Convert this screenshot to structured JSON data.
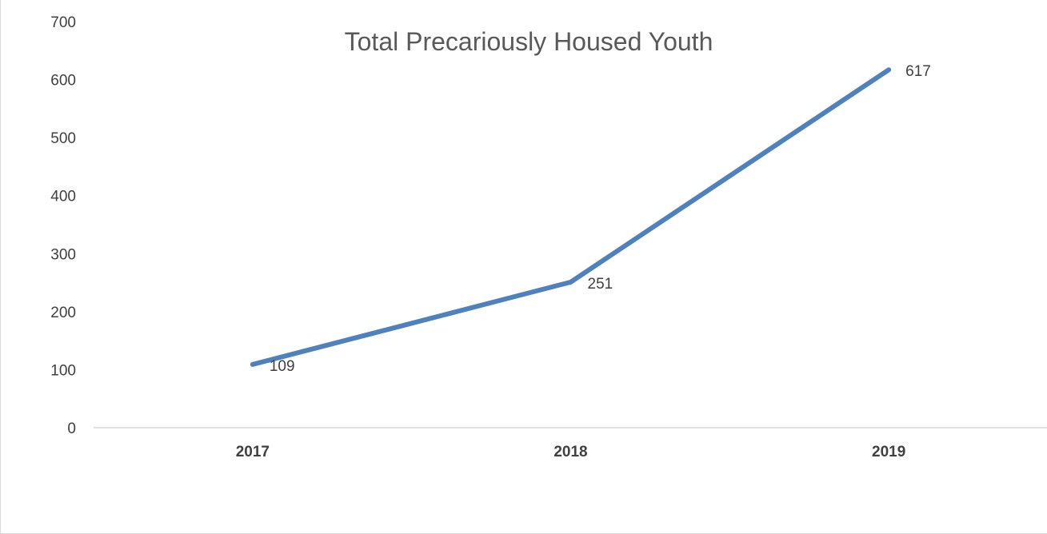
{
  "chart_data": {
    "type": "line",
    "title": "Total Precariously Housed Youth",
    "xlabel": "",
    "ylabel": "",
    "categories": [
      "2017",
      "2018",
      "2019"
    ],
    "series": [
      {
        "values": [
          109,
          251,
          617
        ]
      }
    ],
    "data_labels": [
      "109",
      "251",
      "617"
    ],
    "y_ticks": [
      "0",
      "100",
      "200",
      "300",
      "400",
      "500",
      "600",
      "700"
    ],
    "ylim": [
      0,
      700
    ],
    "grid": false,
    "legend": "none",
    "line_color": "#4f81bd",
    "axis_color": "#d9d9d9",
    "text_color": "#404040"
  }
}
